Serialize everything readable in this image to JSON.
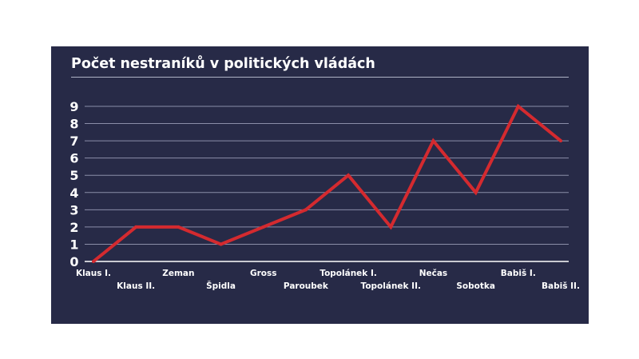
{
  "chart_data": {
    "type": "line",
    "title": "Počet nestraníků v politických vládách",
    "categories": [
      "Klaus I.",
      "Klaus II.",
      "Zeman",
      "Špidla",
      "Gross",
      "Paroubek",
      "Topolánek I.",
      "Topolánek II.",
      "Nečas",
      "Sobotka",
      "Babiš I.",
      "Babiš II."
    ],
    "values": [
      0,
      2,
      2,
      1,
      2,
      3,
      5,
      2,
      7,
      4,
      9,
      7
    ],
    "ylim": [
      0,
      9
    ],
    "yticks": [
      "0",
      "1",
      "2",
      "3",
      "4",
      "5",
      "6",
      "7",
      "8",
      "9"
    ],
    "grid": true,
    "xlabel": "",
    "ylabel": "",
    "line_color": "#d42a2f",
    "background": "#272a47"
  }
}
